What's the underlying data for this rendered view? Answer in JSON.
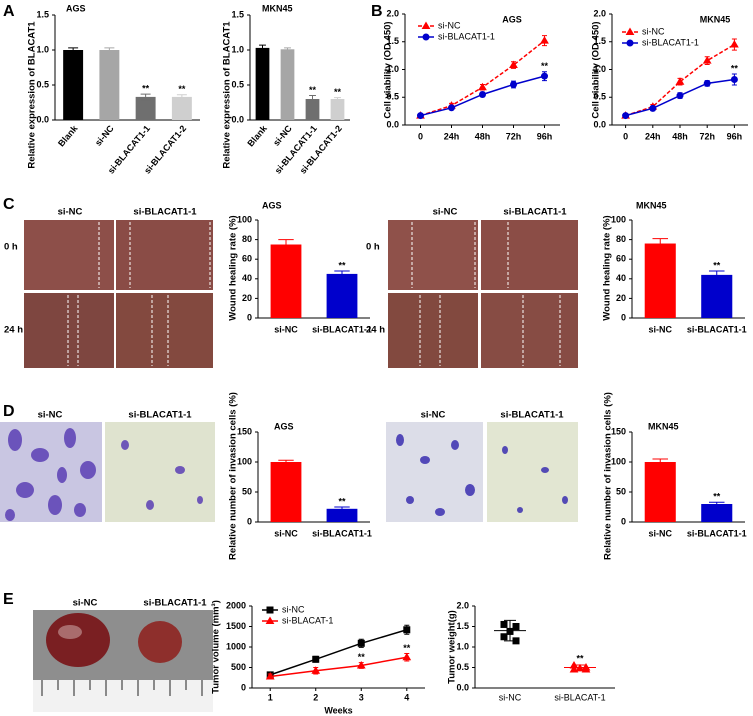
{
  "panel_labels": [
    "A",
    "B",
    "C",
    "D",
    "E"
  ],
  "image_panels": [
    {
      "columns": [
        "si-NC",
        "si-BLACAT1-1"
      ],
      "rows": [
        "0 h",
        "24 h"
      ]
    },
    {
      "columns": [
        "si-NC",
        "si-BLACAT1-1"
      ],
      "rows": [
        "0 h",
        "24 h"
      ]
    },
    {
      "columns": [
        "si-NC",
        "si-BLACAT1-1"
      ]
    },
    {
      "columns": [
        "si-NC",
        "si-BLACAT1-1"
      ]
    },
    {
      "columns": [
        "si-NC",
        "si-BLACAT1-1"
      ]
    }
  ],
  "chart_data": [
    {
      "type": "bar",
      "title": "AGS",
      "ylabel": "Relative expression of BLACAT1",
      "categories": [
        "Blank",
        "si-NC",
        "si-BLACAT1-1",
        "si-BLACAT1-2"
      ],
      "values": [
        1.0,
        1.0,
        0.33,
        0.33
      ],
      "errors": [
        0.03,
        0.03,
        0.04,
        0.03
      ],
      "colors": [
        "#000000",
        "#a6a6a6",
        "#6f6f6f",
        "#cfcfcf"
      ],
      "significance": [
        null,
        null,
        "**",
        "**"
      ],
      "ylim": [
        0,
        1.5
      ],
      "yticks": [
        {
          "value": 0,
          "label": "0.0"
        },
        0.5,
        {
          "value": 1,
          "label": "1.0"
        },
        1.5
      ]
    },
    {
      "type": "bar",
      "title": "MKN45",
      "ylabel": "Relative expression of BLACAT1",
      "categories": [
        "Blank",
        "si-NC",
        "si-BLACAT1-1",
        "si-BLACAT1-2"
      ],
      "values": [
        1.03,
        1.01,
        0.3,
        0.3
      ],
      "errors": [
        0.04,
        0.02,
        0.05,
        0.02
      ],
      "colors": [
        "#000000",
        "#a6a6a6",
        "#6f6f6f",
        "#cfcfcf"
      ],
      "significance": [
        null,
        null,
        "**",
        "**"
      ],
      "ylim": [
        0,
        1.5
      ],
      "yticks": [
        {
          "value": 0,
          "label": "0.0"
        },
        0.5,
        {
          "value": 1,
          "label": "1.0"
        },
        1.5
      ]
    },
    {
      "type": "line",
      "title": "AGS",
      "ylabel": "Cell viability (OD 450)",
      "categories": [
        "0",
        "24h",
        "48h",
        "72h",
        "96h"
      ],
      "series": [
        {
          "name": "si-NC",
          "color": "#ff0000",
          "dashed": true,
          "marker": "triangle",
          "values": [
            0.17,
            0.35,
            0.68,
            1.08,
            1.52
          ],
          "errors": [
            0.03,
            0.04,
            0.05,
            0.06,
            0.09
          ],
          "significance": [
            null,
            null,
            null,
            null,
            null
          ]
        },
        {
          "name": "si-BLACAT1-1",
          "color": "#0000cc",
          "dashed": false,
          "marker": "circle",
          "values": [
            0.17,
            0.31,
            0.55,
            0.73,
            0.88
          ],
          "errors": [
            0.03,
            0.03,
            0.04,
            0.06,
            0.08
          ],
          "significance": [
            null,
            null,
            null,
            null,
            "**"
          ]
        }
      ],
      "ylim": [
        0,
        2.0
      ],
      "yticks": [
        {
          "value": 0,
          "label": "0.0"
        },
        0.5,
        {
          "value": 1,
          "label": "1.0"
        },
        1.5,
        {
          "value": 2,
          "label": "2.0"
        }
      ]
    },
    {
      "type": "line",
      "title": "MKN45",
      "ylabel": "Cell viability (OD 450)",
      "categories": [
        "0",
        "24h",
        "48h",
        "72h",
        "96h"
      ],
      "series": [
        {
          "name": "si-NC",
          "color": "#ff0000",
          "dashed": true,
          "marker": "triangle",
          "values": [
            0.17,
            0.33,
            0.78,
            1.16,
            1.45
          ],
          "errors": [
            0.03,
            0.04,
            0.06,
            0.07,
            0.1
          ],
          "significance": [
            null,
            null,
            null,
            null,
            null
          ]
        },
        {
          "name": "si-BLACAT1-1",
          "color": "#0000cc",
          "dashed": false,
          "marker": "circle",
          "values": [
            0.17,
            0.3,
            0.53,
            0.75,
            0.82
          ],
          "errors": [
            0.03,
            0.04,
            0.05,
            0.05,
            0.1
          ],
          "significance": [
            null,
            null,
            null,
            null,
            "**"
          ]
        }
      ],
      "ylim": [
        0,
        2.0
      ],
      "yticks": [
        {
          "value": 0,
          "label": "0.0"
        },
        0.5,
        {
          "value": 1,
          "label": "1.0"
        },
        1.5,
        {
          "value": 2,
          "label": "2.0"
        }
      ]
    },
    {
      "type": "bar",
      "title": "AGS",
      "ylabel": "Wound healing rate (%)",
      "categories": [
        "si-NC",
        "si-BLACAT1-1"
      ],
      "values": [
        75,
        45
      ],
      "errors": [
        5,
        3
      ],
      "colors": [
        "#ff0000",
        "#0000cc"
      ],
      "significance": [
        null,
        "**"
      ],
      "ylim": [
        0,
        100
      ],
      "yticks": [
        0,
        20,
        40,
        60,
        80,
        100
      ]
    },
    {
      "type": "bar",
      "title": "MKN45",
      "ylabel": "Wound healing rate (%)",
      "categories": [
        "si-NC",
        "si-BLACAT1-1"
      ],
      "values": [
        76,
        44
      ],
      "errors": [
        5,
        4
      ],
      "colors": [
        "#ff0000",
        "#0000cc"
      ],
      "significance": [
        null,
        "**"
      ],
      "ylim": [
        0,
        100
      ],
      "yticks": [
        0,
        20,
        40,
        60,
        80,
        100
      ]
    },
    {
      "type": "bar",
      "title": "AGS",
      "ylabel": "Relative number of invasion cells (%)",
      "categories": [
        "si-NC",
        "si-BLACAT1-1"
      ],
      "values": [
        100,
        22
      ],
      "errors": [
        3,
        3
      ],
      "colors": [
        "#ff0000",
        "#0000cc"
      ],
      "significance": [
        null,
        "**"
      ],
      "ylim": [
        0,
        150
      ],
      "yticks": [
        0,
        50,
        100,
        150
      ]
    },
    {
      "type": "bar",
      "title": "MKN45",
      "ylabel": "Relative number of invasion cells (%)",
      "categories": [
        "si-NC",
        "si-BLACAT1-1"
      ],
      "values": [
        100,
        30
      ],
      "errors": [
        5,
        3
      ],
      "colors": [
        "#ff0000",
        "#0000cc"
      ],
      "significance": [
        null,
        "**"
      ],
      "ylim": [
        0,
        150
      ],
      "yticks": [
        0,
        50,
        100,
        150
      ]
    },
    {
      "type": "line",
      "ylabel": "Tumor volume (mm³)",
      "xlabel": "Weeks",
      "x": [
        1,
        2,
        3,
        4
      ],
      "xlim": [
        0.6,
        4.4
      ],
      "xticks": [
        1,
        2,
        3,
        4
      ],
      "series": [
        {
          "name": "si-NC",
          "color": "#000000",
          "dashed": false,
          "marker": "square",
          "values": [
            320,
            700,
            1090,
            1420
          ],
          "errors": [
            70,
            70,
            100,
            110
          ],
          "significance": [
            null,
            null,
            null,
            null
          ]
        },
        {
          "name": "si-BLACAT-1",
          "color": "#ff0000",
          "dashed": false,
          "marker": "triangle",
          "values": [
            280,
            420,
            550,
            750
          ],
          "errors": [
            60,
            80,
            70,
            90
          ],
          "significance": [
            null,
            "*",
            "**",
            "**"
          ]
        }
      ],
      "ylim": [
        0,
        2000
      ],
      "yticks": [
        0,
        500,
        1000,
        1500,
        2000
      ]
    },
    {
      "type": "dotplot",
      "ylabel": "Tumor weight(g)",
      "groups": [
        {
          "name": "si-NC",
          "color": "#000000",
          "marker": "square",
          "values": [
            1.55,
            1.5,
            1.38,
            1.25,
            1.15
          ],
          "mean": 1.4,
          "sd": 0.25
        },
        {
          "name": "si-BLACAT-1",
          "color": "#ff0000",
          "marker": "triangle",
          "values": [
            0.55,
            0.5,
            0.48,
            0.45,
            0.45
          ],
          "mean": 0.5,
          "sd": 0.06,
          "significance": "**"
        }
      ],
      "ylim": [
        0,
        2.0
      ],
      "yticks": [
        {
          "value": 0,
          "label": "0.0"
        },
        0.5,
        {
          "value": 1,
          "label": "1.0"
        },
        1.5,
        {
          "value": 2,
          "label": "2.0"
        }
      ]
    }
  ]
}
